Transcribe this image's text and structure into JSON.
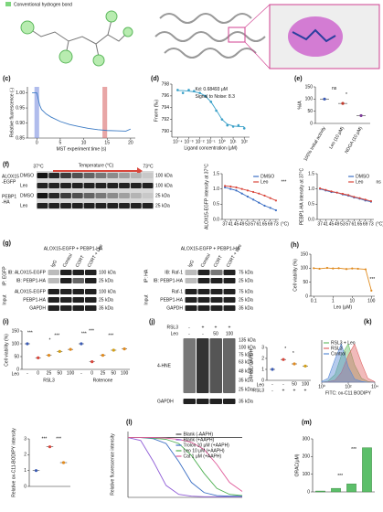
{
  "top_legend": "Conventional hydrogen bond",
  "chart_data": [
    {
      "type": "line",
      "label": "(c)",
      "x_label": "MST experiment time (s)",
      "y_label": "Relative fluorescence (-)",
      "x": [
        -1,
        0,
        0.3,
        0.6,
        1,
        2,
        3,
        5,
        7,
        9,
        11,
        13,
        15,
        17,
        19,
        20
      ],
      "series": [
        {
          "color": "#3b7ac4",
          "values": [
            1.0,
            1.0,
            0.98,
            0.96,
            0.945,
            0.93,
            0.92,
            0.905,
            0.895,
            0.888,
            0.882,
            0.878,
            0.875,
            0.874,
            0.873,
            0.88
          ]
        }
      ],
      "regions": [
        {
          "x": [
            -0.5,
            0.5
          ],
          "color": "#7b8fe0"
        },
        {
          "x": [
            14,
            15
          ],
          "color": "#d96b6b"
        }
      ],
      "xlim": [
        -2,
        21
      ],
      "ylim": [
        0.85,
        1.02
      ],
      "xticks": [
        0,
        5,
        10,
        15,
        20
      ],
      "yticks": [
        {
          "value": 0.85,
          "label": "0.85"
        },
        {
          "value": 0.9,
          "label": "0.90"
        },
        {
          "value": 0.95,
          "label": "0.95"
        },
        {
          "value": 1,
          "label": "1.00"
        }
      ]
    },
    {
      "type": "scatter",
      "label": "(d)",
      "x_label": "Ligand concentration (μM)",
      "y_label": "Fnorm (‰)",
      "xlog": true,
      "x": [
        0.0001,
        0.0003,
        0.001,
        0.003,
        0.01,
        0.03,
        0.1,
        0.3,
        1,
        3,
        10,
        30,
        100
      ],
      "series": [
        {
          "kind": "scatter",
          "color": "#3aa0c8",
          "values": [
            797,
            796.5,
            797,
            796.8,
            796.5,
            796,
            795,
            793.5,
            792,
            791,
            790.8,
            791,
            790.5
          ]
        },
        {
          "kind": "line",
          "color": "#3aa0c8",
          "values": [
            796.9,
            796.9,
            796.8,
            796.7,
            796.5,
            796,
            795,
            793.6,
            792,
            791.2,
            790.9,
            790.8,
            790.8
          ]
        }
      ],
      "annotations": [
        "Kd: 0.68493 μM",
        "Signal to Noise: 8.3"
      ],
      "xlim": [
        3e-05,
        300
      ],
      "ylim": [
        789,
        798
      ],
      "xticks": [
        {
          "value": 0.0001,
          "label": "10⁻⁴"
        },
        {
          "value": 0.001,
          "label": "10⁻³"
        },
        {
          "value": 0.01,
          "label": "10⁻²"
        },
        {
          "value": 0.1,
          "label": "10⁻¹"
        },
        {
          "value": 1,
          "label": "10⁰"
        },
        {
          "value": 10,
          "label": "10¹"
        },
        {
          "value": 100,
          "label": "10²"
        }
      ],
      "yticks": [
        790,
        792,
        794,
        796,
        798
      ]
    },
    {
      "type": "dot",
      "label": "(e)",
      "y_label": "%IA",
      "rotate_labels": true,
      "categories": [
        "100% Initial activity",
        "Leo (10 μM)",
        "NDGA (10 μM)"
      ],
      "series": [
        {
          "colors": [
            "#3b5bb5",
            "#c0392b",
            "#7d3c98"
          ],
          "values": [
            100,
            82,
            32
          ]
        }
      ],
      "annotations": [
        "ns",
        "*"
      ],
      "ylim": [
        0,
        150
      ],
      "yticks": [
        0,
        50,
        100,
        150
      ]
    },
    {
      "type": "line",
      "x_label": "(°C)",
      "y_label": "ALOX15-EGFP intensity at 37°C",
      "markers": true,
      "legend": "top-right",
      "x": [
        37,
        41,
        45,
        49,
        53,
        57,
        61,
        65,
        69,
        73
      ],
      "series": [
        {
          "name": "DMSO",
          "color": "#3b6fc4",
          "values": [
            1.05,
            1.0,
            0.95,
            0.85,
            0.75,
            0.65,
            0.55,
            0.45,
            0.38,
            0.3
          ]
        },
        {
          "name": "Leo",
          "color": "#d9463b",
          "values": [
            1.1,
            1.08,
            1.05,
            1.0,
            0.95,
            0.9,
            0.85,
            0.78,
            0.7,
            0.62
          ]
        }
      ],
      "annotations": [
        "***"
      ],
      "xlim": [
        35,
        75
      ],
      "ylim": [
        0,
        1.5
      ],
      "xticks": [
        37,
        41,
        45,
        49,
        53,
        57,
        61,
        65,
        69,
        73
      ],
      "yticks": [
        {
          "value": 0,
          "label": "0.0"
        },
        {
          "value": 0.5,
          "label": "0.5"
        },
        {
          "value": 1,
          "label": "1.0"
        },
        {
          "value": 1.5,
          "label": "1.5"
        }
      ]
    },
    {
      "type": "line",
      "x_label": "(°C)",
      "y_label": "PEBP1-HA intensity at 37°C",
      "markers": true,
      "legend": "top-right",
      "x": [
        37,
        41,
        45,
        49,
        53,
        57,
        61,
        65,
        69,
        73
      ],
      "series": [
        {
          "name": "DMSO",
          "color": "#3b6fc4",
          "values": [
            1.0,
            0.95,
            0.9,
            0.88,
            0.82,
            0.78,
            0.72,
            0.68,
            0.62,
            0.58
          ]
        },
        {
          "name": "Leo",
          "color": "#d9463b",
          "values": [
            1.02,
            0.97,
            0.92,
            0.88,
            0.84,
            0.8,
            0.74,
            0.7,
            0.65,
            0.6
          ]
        }
      ],
      "annotations": [
        "ns"
      ],
      "xlim": [
        35,
        75
      ],
      "ylim": [
        0,
        1.5
      ],
      "xticks": [
        37,
        41,
        45,
        49,
        53,
        57,
        61,
        65,
        69,
        73
      ],
      "yticks": [
        {
          "value": 0,
          "label": "0.0"
        },
        {
          "value": 0.5,
          "label": "0.5"
        },
        {
          "value": 1,
          "label": "1.0"
        },
        {
          "value": 1.5,
          "label": "1.5"
        }
      ]
    },
    {
      "type": "line",
      "label": "(h)",
      "x_label": "Leo (μM)",
      "y_label": "Cell viability (%)",
      "xlog": true,
      "markers": true,
      "x": [
        0.1,
        0.2,
        0.5,
        1,
        2,
        5,
        10,
        20,
        50,
        100
      ],
      "series": [
        {
          "color": "#e08a1e",
          "values": [
            100,
            98,
            101,
            99,
            100,
            97,
            99,
            98,
            96,
            20
          ]
        }
      ],
      "annotations": [
        "***"
      ],
      "xlim": [
        0.07,
        150
      ],
      "ylim": [
        0,
        150
      ],
      "xticks": [
        0.1,
        1,
        10,
        100
      ],
      "yticks": [
        0,
        50,
        100,
        150
      ]
    },
    {
      "type": "dot",
      "label": "(i)",
      "x_label": "Leo",
      "y_label": "Cell viability (%)",
      "categories": [
        "-",
        "0",
        "25",
        "50",
        "100",
        "-",
        "0",
        "25",
        "50",
        "100"
      ],
      "groups": [
        "RSL3",
        "Rotenone"
      ],
      "series": [
        {
          "colors": [
            "#3b5bb5",
            "#d9463b",
            "#e08a1e",
            "#d4a017",
            "#e08a1e",
            "#3b5bb5",
            "#d9463b",
            "#e08a1e",
            "#d4a017",
            "#e08a1e"
          ],
          "values": [
            100,
            45,
            55,
            70,
            78,
            100,
            30,
            55,
            75,
            80
          ]
        }
      ],
      "annotations": [
        "***",
        "*",
        "***",
        "***",
        "***",
        "***"
      ],
      "ylim": [
        0,
        150
      ],
      "yticks": [
        0,
        50,
        100,
        150
      ]
    },
    {
      "type": "dot",
      "x_label": "Leo",
      "y_label": "4HNE/GAPDH",
      "categories": [
        "-",
        "-",
        "50",
        "100"
      ],
      "row2": {
        "name": "RSL3",
        "labels": [
          "-",
          "+",
          "+",
          "+"
        ]
      },
      "series": [
        {
          "colors": [
            "#3b5bb5",
            "#d9463b",
            "#e08a1e",
            "#d4a017"
          ],
          "values": [
            1.0,
            1.9,
            1.5,
            1.3
          ]
        }
      ],
      "annotations": [
        "*",
        "*"
      ],
      "ylim": [
        0,
        3
      ],
      "yticks": [
        0,
        1,
        2,
        3
      ]
    },
    {
      "type": "area",
      "label": "(k)",
      "x_label": "FITC: ox-C11 BODIPY",
      "xlog": true,
      "legend": "top-left",
      "x": [
        1,
        3,
        10,
        30,
        100,
        300,
        1000,
        3000,
        10000
      ],
      "series": [
        {
          "name": "RSL3 + Leo",
          "color": "#6abf69",
          "values": [
            0,
            3,
            20,
            70,
            100,
            45,
            10,
            2,
            0
          ]
        },
        {
          "name": "RSL3",
          "color": "#e06666",
          "values": [
            0,
            1,
            5,
            25,
            70,
            100,
            50,
            10,
            1
          ]
        },
        {
          "name": "Control",
          "color": "#5b8bd6",
          "values": [
            2,
            10,
            60,
            100,
            40,
            8,
            2,
            0,
            0
          ]
        }
      ],
      "xlim": [
        1,
        10000
      ],
      "ylim": [
        0,
        110
      ],
      "xticks": [
        {
          "value": 1,
          "label": "10⁰"
        },
        {
          "value": 100,
          "label": "10²"
        },
        {
          "value": 10000,
          "label": "10⁴"
        }
      ]
    },
    {
      "type": "dot",
      "y_label": "Relative ox-C11-BODIPY intensity",
      "categories": [
        null,
        null,
        null
      ],
      "series": [
        {
          "colors": [
            "#3b5bb5",
            "#d9463b",
            "#e08a1e"
          ],
          "values": [
            1.0,
            2.5,
            1.5
          ]
        }
      ],
      "annotations": [
        "***",
        "***"
      ],
      "ylim": [
        0,
        3
      ],
      "yticks": [
        0,
        1,
        2,
        3
      ]
    },
    {
      "type": "line",
      "label": "(l)",
      "y_label": "Relative fluorescence intensity",
      "legend": "top-right",
      "x": [
        0,
        10,
        20,
        30,
        40,
        50,
        60,
        70,
        80,
        90
      ],
      "series": [
        {
          "name": "Blank (-AAPH)",
          "color": "#444444",
          "values": [
            1,
            1,
            1,
            1,
            1,
            1,
            1,
            1,
            1,
            1
          ]
        },
        {
          "name": "Blank (+AAPH)",
          "color": "#8e5bd6",
          "values": [
            1,
            0.95,
            0.6,
            0.2,
            0.05,
            0.02,
            0.01,
            0.01,
            0.01,
            0.01
          ]
        },
        {
          "name": "Trolox 10 μM (+AAPH)",
          "color": "#3b6fc4",
          "values": [
            1,
            1,
            0.98,
            0.9,
            0.6,
            0.25,
            0.08,
            0.03,
            0.02,
            0.02
          ]
        },
        {
          "name": "Leo 10 μM (+AAPH)",
          "color": "#4caf50",
          "values": [
            1,
            1,
            0.99,
            0.97,
            0.9,
            0.7,
            0.4,
            0.15,
            0.05,
            0.03
          ]
        },
        {
          "name": "Cat 1 μM (+AAPH)",
          "color": "#e05c9a",
          "values": [
            1,
            1,
            1,
            0.99,
            0.97,
            0.92,
            0.8,
            0.55,
            0.25,
            0.1
          ]
        }
      ],
      "xlim": [
        0,
        90
      ],
      "ylim": [
        0,
        1.1
      ]
    },
    {
      "type": "bar",
      "label": "(m)",
      "y_label": "ORAC(μM)",
      "categories": [
        null,
        null,
        null,
        null
      ],
      "series": [
        {
          "color": "#5cbf6a",
          "values": [
            5,
            20,
            45,
            250
          ]
        }
      ],
      "annotations": [
        "***",
        "***"
      ],
      "ylim": [
        0,
        300
      ],
      "yticks": [
        0,
        100,
        200,
        300
      ]
    }
  ],
  "blot_f": [
    "(f)",
    "37°C",
    "Temperature (°C)",
    "73°C",
    "ALOX15",
    "-EGFP",
    "DMSO",
    "Leo",
    "PEBP1",
    "-HA",
    "DMSO",
    "Leo",
    "100 kDa",
    "100 kDa",
    "25 kDa",
    "25 kDa"
  ],
  "blot_g": [
    "(g)",
    "ALOX15-EGFP + PEBP1-HA",
    "IgG",
    "Control",
    "CORT",
    "CORT + Leo",
    "IP: EGFP",
    "Input",
    "IB: ALOX15-EGFP",
    "IB: PEBP1-HA",
    "ALOX15-EGFP",
    "PEBP1-HA",
    "GAPDH",
    "100 kDa",
    "25 kDa",
    "100 kDa",
    "25 kDa",
    "35 kDa",
    "ALOX15-EGFP + PEBP1-HA",
    "IgG",
    "Control",
    "CORT",
    "CORT + Leo",
    "IP: HA",
    "Input",
    "IB: Raf-1",
    "IB: PEBP1-HA",
    "Raf-1",
    "PEBP1-HA",
    "GAPDH",
    "75 kDa",
    "25 kDa",
    "75 kDa",
    "25 kDa",
    "35 kDa"
  ],
  "blot_j": [
    "(j)",
    "RSL3",
    "Leo",
    "-",
    "+",
    "+",
    "+",
    "-",
    "-",
    "50",
    "100",
    "4-HNE",
    "GAPDH",
    "135 kDa",
    "100 kDa",
    "75 kDa",
    "63 kDa",
    "48 kDa",
    "35 kDa",
    "25 kDa",
    "35 kDa"
  ]
}
